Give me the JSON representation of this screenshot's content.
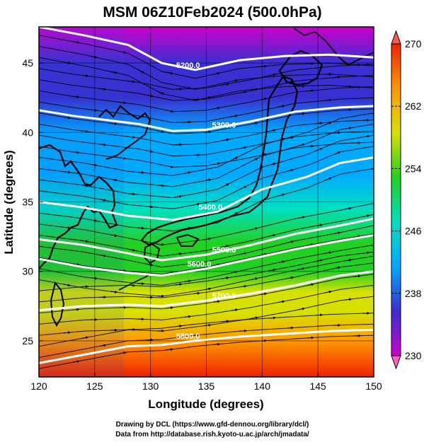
{
  "chart_data": {
    "type": "heatmap",
    "title": "MSM 06Z10Feb2024 (500.0hPa)",
    "xlabel": "Longitude (degrees)",
    "ylabel": "Latitude  (degrees)",
    "xlim": [
      120,
      150
    ],
    "ylim": [
      22.4,
      47.6
    ],
    "x_ticks": [
      "120",
      "125",
      "130",
      "135",
      "140",
      "145",
      "150"
    ],
    "y_ticks": [
      "25",
      "30",
      "35",
      "40",
      "45"
    ],
    "colorbar": {
      "min": 230,
      "max": 270,
      "tick_labels": [
        "230",
        "238",
        "246",
        "254",
        "262",
        "270"
      ],
      "colors": [
        "#cc00cc",
        "#3a2fd0",
        "#00aaff",
        "#00e0c0",
        "#22d022",
        "#d8e000",
        "#ff9900",
        "#ee2200"
      ]
    },
    "contours": [
      {
        "label": "5200.0",
        "points": [
          [
            120,
            47.6
          ],
          [
            124,
            47.0
          ],
          [
            128,
            46.3
          ],
          [
            131,
            45.0
          ],
          [
            134,
            44.5
          ],
          [
            138,
            45.2
          ],
          [
            142,
            45.5
          ],
          [
            146,
            45.6
          ],
          [
            150,
            45.4
          ]
        ]
      },
      {
        "label": "5300.0",
        "points": [
          [
            120,
            41.6
          ],
          [
            123,
            41.2
          ],
          [
            126,
            40.9
          ],
          [
            129,
            40.6
          ],
          [
            132,
            40.1
          ],
          [
            135,
            40.2
          ],
          [
            139,
            40.8
          ],
          [
            143,
            41.5
          ],
          [
            147,
            41.8
          ],
          [
            150,
            41.9
          ]
        ]
      },
      {
        "label": "5400.0",
        "points": [
          [
            120,
            35.0
          ],
          [
            124,
            34.6
          ],
          [
            128,
            34.0
          ],
          [
            132,
            33.7
          ],
          [
            136,
            34.3
          ],
          [
            140,
            35.9
          ],
          [
            144,
            36.8
          ],
          [
            147,
            37.8
          ],
          [
            150,
            38.2
          ]
        ]
      },
      {
        "label": "5500.0",
        "points": [
          [
            120,
            32.3
          ],
          [
            124,
            31.9
          ],
          [
            128,
            31.3
          ],
          [
            131,
            30.8
          ],
          [
            135,
            31.2
          ],
          [
            139,
            31.9
          ],
          [
            143,
            32.7
          ],
          [
            147,
            33.3
          ],
          [
            150,
            33.8
          ]
        ]
      },
      {
        "label": "5600.0",
        "points": [
          [
            120,
            30.9
          ],
          [
            124,
            30.3
          ],
          [
            128,
            29.9
          ],
          [
            131,
            29.7
          ],
          [
            135,
            30.2
          ],
          [
            139,
            30.9
          ],
          [
            143,
            31.6
          ],
          [
            147,
            32.2
          ],
          [
            150,
            32.6
          ]
        ]
      },
      {
        "label": "5700.0",
        "points": [
          [
            120,
            27.2
          ],
          [
            124,
            27.5
          ],
          [
            128,
            27.6
          ],
          [
            131,
            27.5
          ],
          [
            135,
            27.9
          ],
          [
            139,
            28.4
          ],
          [
            143,
            29.0
          ],
          [
            147,
            29.7
          ],
          [
            150,
            30.0
          ]
        ]
      },
      {
        "label": "5800.0",
        "points": [
          [
            120,
            23.4
          ],
          [
            124,
            24.0
          ],
          [
            128,
            24.6
          ],
          [
            131,
            24.7
          ],
          [
            134,
            25.0
          ],
          [
            138,
            25.3
          ],
          [
            142,
            25.5
          ],
          [
            146,
            25.7
          ],
          [
            150,
            25.8
          ]
        ]
      }
    ],
    "temperature_bands_k": [
      {
        "lat": 47.6,
        "value": 231
      },
      {
        "lat": 45.0,
        "value": 233
      },
      {
        "lat": 42.5,
        "value": 237
      },
      {
        "lat": 40.0,
        "value": 239
      },
      {
        "lat": 37.0,
        "value": 243
      },
      {
        "lat": 34.5,
        "value": 246
      },
      {
        "lat": 32.0,
        "value": 250
      },
      {
        "lat": 30.0,
        "value": 253
      },
      {
        "lat": 28.5,
        "value": 256
      },
      {
        "lat": 27.0,
        "value": 260
      },
      {
        "lat": 25.0,
        "value": 264
      },
      {
        "lat": 22.4,
        "value": 268
      }
    ],
    "grid": true,
    "vectors": "wind streamlines with arrowheads, flowing west to east"
  },
  "credits": {
    "line1": "Drawing by DCL (https://www.gfd-dennou.org/library/dcl/)",
    "line2": "Data from http://database.rish.kyoto-u.ac.jp/arch/jmadata/"
  }
}
